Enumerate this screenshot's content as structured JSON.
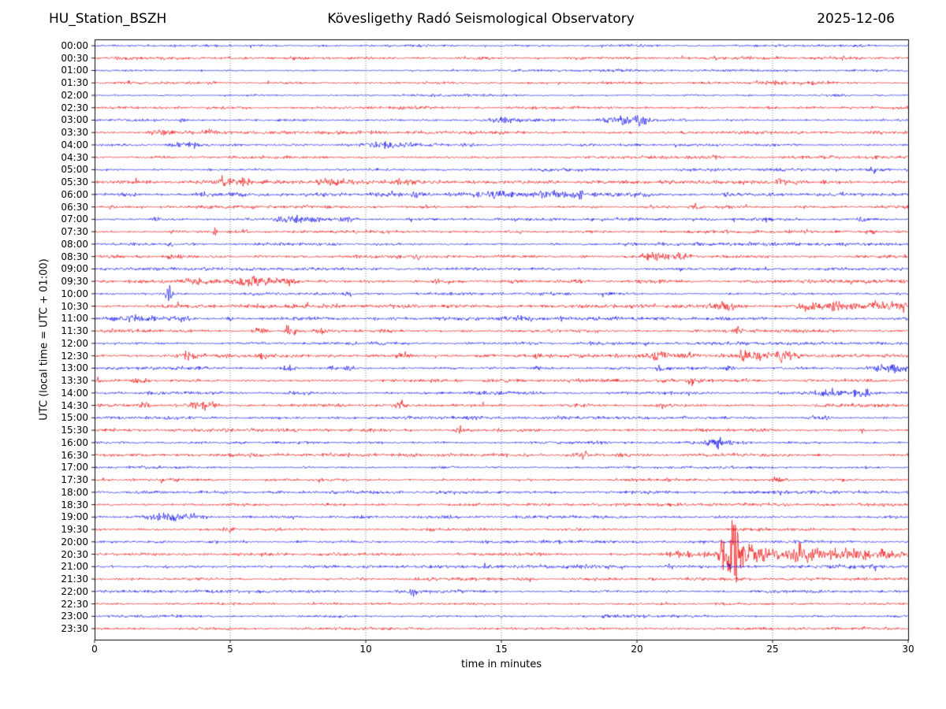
{
  "header": {
    "station": "HU_Station_BSZH",
    "observatory": "Kövesligethy Radó Seismological Observatory",
    "date": "2025-12-06"
  },
  "axes": {
    "xlabel": "time in minutes",
    "ylabel": "UTC (local time = UTC + 01:00)",
    "xticks": [
      0,
      5,
      10,
      15,
      20,
      25,
      30
    ],
    "xlim": [
      0,
      30
    ],
    "grid": "dotted-vertical-every-5-min"
  },
  "colors": {
    "blue": "#0000ee",
    "red": "#ee0000",
    "frame": "#000000",
    "gridline": "#777777",
    "background": "#ffffff"
  },
  "chart_data": {
    "type": "line",
    "subtype": "helicorder-seismogram",
    "minutes_per_row": 30,
    "row_interval": "00:30",
    "note": "48 alternating blue/red traces, one per 30-minute UTC interval; events are noise bursts {t:center-minute, w:width-minutes, a:amplitude-px}",
    "rows": [
      {
        "label": "00:00",
        "color": "blue",
        "noise": 1.1,
        "events": []
      },
      {
        "label": "00:30",
        "color": "red",
        "noise": 1.2,
        "events": []
      },
      {
        "label": "01:00",
        "color": "blue",
        "noise": 1.0,
        "events": []
      },
      {
        "label": "01:30",
        "color": "red",
        "noise": 1.2,
        "events": [
          {
            "t": 24.8,
            "w": 0.8,
            "a": 1.8
          },
          {
            "t": 26.7,
            "w": 0.8,
            "a": 1.8
          }
        ]
      },
      {
        "label": "02:00",
        "color": "blue",
        "noise": 1.0,
        "events": []
      },
      {
        "label": "02:30",
        "color": "red",
        "noise": 1.2,
        "events": []
      },
      {
        "label": "03:00",
        "color": "blue",
        "noise": 1.1,
        "events": [
          {
            "t": 3.3,
            "w": 0.3,
            "a": 2.2
          },
          {
            "t": 15.2,
            "w": 1.3,
            "a": 2.8
          },
          {
            "t": 19.5,
            "w": 1.5,
            "a": 4.0
          },
          {
            "t": 20.2,
            "w": 0.5,
            "a": 4.5
          }
        ]
      },
      {
        "label": "03:30",
        "color": "red",
        "noise": 1.3,
        "events": [
          {
            "t": 2.5,
            "w": 0.5,
            "a": 2.2
          },
          {
            "t": 4.2,
            "w": 0.4,
            "a": 2.2
          }
        ]
      },
      {
        "label": "04:00",
        "color": "blue",
        "noise": 1.1,
        "events": [
          {
            "t": 3.4,
            "w": 0.9,
            "a": 3.2
          },
          {
            "t": 10.8,
            "w": 1.6,
            "a": 2.8
          },
          {
            "t": 13.8,
            "w": 0.4,
            "a": 2.4
          }
        ]
      },
      {
        "label": "04:30",
        "color": "red",
        "noise": 1.2,
        "events": [
          {
            "t": 22.9,
            "w": 0.25,
            "a": 2.4
          }
        ]
      },
      {
        "label": "05:00",
        "color": "blue",
        "noise": 1.1,
        "events": [
          {
            "t": 28.7,
            "w": 0.3,
            "a": 2.4
          }
        ]
      },
      {
        "label": "05:30",
        "color": "red",
        "noise": 1.4,
        "events": [
          {
            "t": 4.8,
            "w": 0.7,
            "a": 3.8
          },
          {
            "t": 5.5,
            "w": 0.3,
            "a": 4.2
          },
          {
            "t": 8.9,
            "w": 1.5,
            "a": 2.6
          },
          {
            "t": 11.5,
            "w": 0.7,
            "a": 2.2
          },
          {
            "t": 25.3,
            "w": 0.4,
            "a": 3.4
          }
        ]
      },
      {
        "label": "06:00",
        "color": "blue",
        "noise": 1.5,
        "events": [
          {
            "t": 4.0,
            "w": 0.4,
            "a": 2.6
          },
          {
            "t": 11.9,
            "w": 0.5,
            "a": 2.6
          },
          {
            "t": 14.8,
            "w": 2.0,
            "a": 3.2
          },
          {
            "t": 16.9,
            "w": 1.2,
            "a": 3.4
          },
          {
            "t": 17.9,
            "w": 0.25,
            "a": 5.5
          },
          {
            "t": 20.1,
            "w": 0.6,
            "a": 2.4
          }
        ]
      },
      {
        "label": "06:30",
        "color": "red",
        "noise": 1.3,
        "events": [
          {
            "t": 22.2,
            "w": 0.45,
            "a": 2.8
          }
        ]
      },
      {
        "label": "07:00",
        "color": "blue",
        "noise": 1.2,
        "events": [
          {
            "t": 2.3,
            "w": 0.35,
            "a": 2.4
          },
          {
            "t": 7.5,
            "w": 1.3,
            "a": 2.6
          },
          {
            "t": 9.3,
            "w": 0.5,
            "a": 2.4
          },
          {
            "t": 28.4,
            "w": 0.35,
            "a": 2.4
          }
        ]
      },
      {
        "label": "07:30",
        "color": "red",
        "noise": 1.2,
        "events": [
          {
            "t": 4.45,
            "w": 0.12,
            "a": 6.5
          },
          {
            "t": 5.5,
            "w": 0.25,
            "a": 2.3
          },
          {
            "t": 28.6,
            "w": 0.35,
            "a": 2.8
          }
        ]
      },
      {
        "label": "08:00",
        "color": "blue",
        "noise": 1.2,
        "events": [
          {
            "t": 2.85,
            "w": 0.18,
            "a": 2.8
          }
        ]
      },
      {
        "label": "08:30",
        "color": "red",
        "noise": 1.3,
        "events": [
          {
            "t": 2.9,
            "w": 0.5,
            "a": 2.3
          },
          {
            "t": 11.9,
            "w": 0.18,
            "a": 2.8
          },
          {
            "t": 20.6,
            "w": 0.8,
            "a": 3.0
          },
          {
            "t": 21.6,
            "w": 0.7,
            "a": 2.8
          }
        ]
      },
      {
        "label": "09:00",
        "color": "blue",
        "noise": 1.2,
        "events": []
      },
      {
        "label": "09:30",
        "color": "red",
        "noise": 1.5,
        "events": [
          {
            "t": 3.8,
            "w": 1.0,
            "a": 2.8
          },
          {
            "t": 5.8,
            "w": 1.0,
            "a": 4.0
          },
          {
            "t": 7.0,
            "w": 0.9,
            "a": 2.8
          },
          {
            "t": 12.8,
            "w": 0.7,
            "a": 2.6
          }
        ]
      },
      {
        "label": "10:00",
        "color": "blue",
        "noise": 1.2,
        "events": [
          {
            "t": 2.75,
            "w": 0.22,
            "a": 11
          },
          {
            "t": 9.4,
            "w": 0.4,
            "a": 2.3
          }
        ]
      },
      {
        "label": "10:30",
        "color": "red",
        "noise": 1.5,
        "events": [
          {
            "t": 23.3,
            "w": 0.8,
            "a": 3.8
          },
          {
            "t": 26.3,
            "w": 0.7,
            "a": 3.8
          },
          {
            "t": 27.3,
            "w": 0.5,
            "a": 3.2
          },
          {
            "t": 28.7,
            "w": 1.6,
            "a": 3.4
          },
          {
            "t": 29.8,
            "w": 0.5,
            "a": 3.4
          }
        ]
      },
      {
        "label": "11:00",
        "color": "blue",
        "noise": 1.4,
        "events": [
          {
            "t": 1.5,
            "w": 1.6,
            "a": 2.6
          },
          {
            "t": 3.2,
            "w": 0.8,
            "a": 3.0
          },
          {
            "t": 5.0,
            "w": 0.18,
            "a": 3.6
          },
          {
            "t": 15.8,
            "w": 0.7,
            "a": 2.3
          }
        ]
      },
      {
        "label": "11:30",
        "color": "red",
        "noise": 1.3,
        "events": [
          {
            "t": 6.1,
            "w": 0.4,
            "a": 2.8
          },
          {
            "t": 7.2,
            "w": 0.4,
            "a": 5.2
          },
          {
            "t": 8.5,
            "w": 1.0,
            "a": 2.4
          },
          {
            "t": 23.7,
            "w": 0.25,
            "a": 2.8
          }
        ]
      },
      {
        "label": "12:00",
        "color": "blue",
        "noise": 1.2,
        "events": []
      },
      {
        "label": "12:30",
        "color": "red",
        "noise": 1.4,
        "events": [
          {
            "t": 3.5,
            "w": 0.7,
            "a": 2.6
          },
          {
            "t": 6.2,
            "w": 0.25,
            "a": 2.8
          },
          {
            "t": 11.3,
            "w": 0.7,
            "a": 2.6
          },
          {
            "t": 16.3,
            "w": 0.35,
            "a": 2.8
          },
          {
            "t": 20.8,
            "w": 0.9,
            "a": 3.2
          },
          {
            "t": 21.9,
            "w": 0.5,
            "a": 3.2
          },
          {
            "t": 23.9,
            "w": 0.22,
            "a": 5.5
          },
          {
            "t": 24.6,
            "w": 1.4,
            "a": 3.8
          },
          {
            "t": 25.4,
            "w": 0.8,
            "a": 3.8
          }
        ]
      },
      {
        "label": "13:00",
        "color": "blue",
        "noise": 1.3,
        "events": [
          {
            "t": 7.2,
            "w": 0.45,
            "a": 2.8
          },
          {
            "t": 8.8,
            "w": 0.35,
            "a": 2.8
          },
          {
            "t": 9.4,
            "w": 0.3,
            "a": 3.0
          },
          {
            "t": 16.4,
            "w": 0.4,
            "a": 3.0
          },
          {
            "t": 20.9,
            "w": 0.45,
            "a": 3.0
          },
          {
            "t": 23.4,
            "w": 0.4,
            "a": 3.0
          },
          {
            "t": 29.4,
            "w": 1.0,
            "a": 3.2
          }
        ]
      },
      {
        "label": "13:30",
        "color": "red",
        "noise": 1.3,
        "events": [
          {
            "t": 0.15,
            "w": 0.12,
            "a": 5.5
          },
          {
            "t": 1.7,
            "w": 0.6,
            "a": 2.6
          },
          {
            "t": 22.0,
            "w": 0.2,
            "a": 3.8
          },
          {
            "t": 22.35,
            "w": 0.18,
            "a": 3.2
          }
        ]
      },
      {
        "label": "14:00",
        "color": "blue",
        "noise": 1.3,
        "events": [
          {
            "t": 27.2,
            "w": 1.3,
            "a": 3.8
          },
          {
            "t": 28.3,
            "w": 0.7,
            "a": 3.4
          }
        ]
      },
      {
        "label": "14:30",
        "color": "red",
        "noise": 1.4,
        "events": [
          {
            "t": 1.8,
            "w": 0.45,
            "a": 2.6
          },
          {
            "t": 4.0,
            "w": 0.9,
            "a": 3.2
          },
          {
            "t": 11.3,
            "w": 0.4,
            "a": 4.8
          },
          {
            "t": 20.9,
            "w": 0.25,
            "a": 2.4
          }
        ]
      },
      {
        "label": "15:00",
        "color": "blue",
        "noise": 1.2,
        "events": [
          {
            "t": 21.8,
            "w": 0.25,
            "a": 2.3
          },
          {
            "t": 26.7,
            "w": 0.7,
            "a": 2.3
          }
        ]
      },
      {
        "label": "15:30",
        "color": "red",
        "noise": 1.3,
        "events": [
          {
            "t": 13.5,
            "w": 0.35,
            "a": 2.6
          },
          {
            "t": 28.3,
            "w": 0.18,
            "a": 3.2
          }
        ]
      },
      {
        "label": "16:00",
        "color": "blue",
        "noise": 1.2,
        "events": [
          {
            "t": 23.0,
            "w": 0.8,
            "a": 3.6
          }
        ]
      },
      {
        "label": "16:30",
        "color": "red",
        "noise": 1.3,
        "events": [
          {
            "t": 18.0,
            "w": 0.35,
            "a": 2.8
          }
        ]
      },
      {
        "label": "17:00",
        "color": "blue",
        "noise": 1.1,
        "events": []
      },
      {
        "label": "17:30",
        "color": "red",
        "noise": 1.2,
        "events": [
          {
            "t": 25.2,
            "w": 0.4,
            "a": 3.2
          }
        ]
      },
      {
        "label": "18:00",
        "color": "blue",
        "noise": 1.2,
        "events": []
      },
      {
        "label": "18:30",
        "color": "red",
        "noise": 1.2,
        "events": []
      },
      {
        "label": "19:00",
        "color": "blue",
        "noise": 1.3,
        "events": [
          {
            "t": 2.8,
            "w": 1.5,
            "a": 3.4
          }
        ]
      },
      {
        "label": "19:30",
        "color": "red",
        "noise": 1.2,
        "events": [
          {
            "t": 4.9,
            "w": 0.4,
            "a": 3.2
          }
        ]
      },
      {
        "label": "20:00",
        "color": "blue",
        "noise": 1.2,
        "events": []
      },
      {
        "label": "20:30",
        "color": "red",
        "noise": 1.3,
        "events": [
          {
            "t": 21.8,
            "w": 1.5,
            "a": 2.8
          },
          {
            "t": 23.3,
            "w": 0.5,
            "a": 10
          },
          {
            "t": 23.6,
            "w": 0.6,
            "a": 38
          },
          {
            "t": 24.3,
            "w": 0.8,
            "a": 12
          },
          {
            "t": 25.0,
            "w": 0.6,
            "a": 6
          },
          {
            "t": 26.0,
            "w": 0.8,
            "a": 10
          },
          {
            "t": 27.0,
            "w": 1.2,
            "a": 5
          },
          {
            "t": 28.0,
            "w": 0.8,
            "a": 6
          },
          {
            "t": 29.2,
            "w": 1.5,
            "a": 4
          }
        ]
      },
      {
        "label": "21:00",
        "color": "blue",
        "noise": 1.4,
        "events": [
          {
            "t": 21.2,
            "w": 0.3,
            "a": 2.3
          },
          {
            "t": 23.4,
            "w": 0.15,
            "a": 2.8
          }
        ]
      },
      {
        "label": "21:30",
        "color": "red",
        "noise": 1.2,
        "events": []
      },
      {
        "label": "22:00",
        "color": "blue",
        "noise": 1.2,
        "events": [
          {
            "t": 11.75,
            "w": 0.2,
            "a": 4.2
          }
        ]
      },
      {
        "label": "22:30",
        "color": "red",
        "noise": 1.1,
        "events": []
      },
      {
        "label": "23:00",
        "color": "blue",
        "noise": 1.1,
        "events": []
      },
      {
        "label": "23:30",
        "color": "red",
        "noise": 1.2,
        "events": []
      }
    ]
  }
}
